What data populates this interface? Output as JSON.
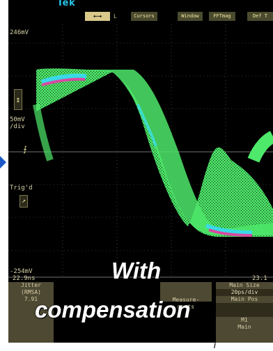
{
  "header": {
    "brand": "Tek",
    "menu": [
      {
        "label": "←→",
        "style": "arrow"
      },
      {
        "label": "L",
        "style": "letter"
      },
      {
        "label": "Cursors",
        "style": "box"
      },
      {
        "label": "Window",
        "style": "box"
      },
      {
        "label": "FFTmag",
        "style": "box"
      },
      {
        "label": "Def T",
        "style": "box"
      }
    ]
  },
  "scale": {
    "top_voltage": "246mV",
    "bottom_voltage": "-254mV",
    "vertical_scale": "50mV\n/div",
    "trigger_label": "Trig'd",
    "time_left": "22.9ns",
    "time_right": "23.1"
  },
  "bottom_panel": {
    "jitter": {
      "title": "Jitter",
      "mode": "(RMSA)",
      "value": "7.91"
    },
    "measurements": {
      "label": "Measure-\nments"
    },
    "main": {
      "lines": [
        "Main Size",
        "20ps/div",
        "Main Pos",
        "",
        "M1",
        "Main"
      ]
    }
  },
  "overlay": {
    "line1": "With",
    "line2": "compensation"
  },
  "colors": {
    "screen_bg": "#000000",
    "trace_green": "#4ee86a",
    "trace_cyan": "#39d9e6",
    "trace_magenta": "#d94aa0",
    "text_yellow": "#f2e7a4",
    "panel_bg": "#4d4932",
    "brand_blue": "#27c3e8"
  },
  "trace_data": {
    "type": "eye-diagram",
    "y_range_mV": [
      -254,
      246
    ],
    "y_scale": "50mV/div",
    "time_range": [
      "22.9ns",
      "23.1"
    ],
    "time_scale": "20ps/div",
    "upper_level_mV": 195,
    "lower_level_mV": -200,
    "shape": "falling transition then rising transition"
  }
}
